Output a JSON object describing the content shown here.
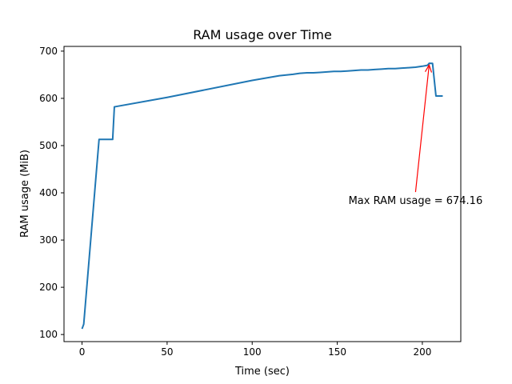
{
  "chart_data": {
    "type": "line",
    "title": "RAM usage over Time",
    "xlabel": "Time (sec)",
    "ylabel": "RAM usage (MiB)",
    "xlim": [
      -10.6,
      222.6
    ],
    "ylim": [
      85,
      710
    ],
    "xticks": [
      0,
      50,
      100,
      150,
      200
    ],
    "yticks": [
      100,
      200,
      300,
      400,
      500,
      600,
      700
    ],
    "grid": false,
    "series": [
      {
        "color": "#1f77b4",
        "x": [
          0,
          1,
          10,
          18,
          19,
          50,
          100,
          116,
          124,
          128,
          132,
          136,
          140,
          144,
          148,
          152,
          156,
          160,
          164,
          168,
          172,
          176,
          180,
          184,
          188,
          192,
          196,
          200,
          203,
          204,
          206,
          208,
          212
        ],
        "y": [
          112,
          122,
          513,
          513,
          582,
          602,
          638,
          648,
          651,
          653,
          654,
          654,
          655,
          656,
          657,
          657,
          658,
          659,
          660,
          660,
          661,
          662,
          663,
          663,
          664,
          665,
          666,
          668,
          670,
          674.16,
          674,
          605,
          605
        ]
      }
    ],
    "annotation": {
      "text": "Max RAM usage = 674.16",
      "color": "#ff0000",
      "point": {
        "x": 204,
        "y": 674.16
      },
      "text_anchor_point": {
        "x": 196,
        "y": 400
      }
    }
  }
}
